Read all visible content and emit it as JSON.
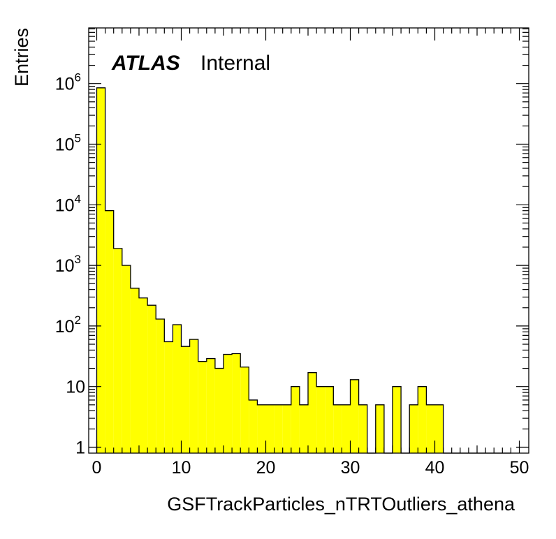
{
  "chart_data": {
    "type": "bar",
    "histogram": true,
    "label_atlas": "ATLAS",
    "label_status": "Internal",
    "xlabel": "GSFTrackParticles_nTRTOutliers_athena",
    "ylabel": "Entries",
    "xlim": [
      0,
      50
    ],
    "ylim": [
      0.8,
      9000000
    ],
    "yscale": "log",
    "bin_width": 1,
    "fill_color": "#ffff00",
    "line_color": "#000000",
    "x_tick_labels": [
      {
        "value": 0,
        "label": "0"
      },
      {
        "value": 10,
        "label": "10"
      },
      {
        "value": 20,
        "label": "20"
      },
      {
        "value": 30,
        "label": "30"
      },
      {
        "value": 40,
        "label": "40"
      },
      {
        "value": 50,
        "label": "50"
      }
    ],
    "y_tick_labels": [
      {
        "value": 1,
        "base": "1",
        "exp": ""
      },
      {
        "value": 10,
        "base": "10",
        "exp": ""
      },
      {
        "value": 100,
        "base": "10",
        "exp": "2"
      },
      {
        "value": 1000,
        "base": "10",
        "exp": "3"
      },
      {
        "value": 10000,
        "base": "10",
        "exp": "4"
      },
      {
        "value": 100000,
        "base": "10",
        "exp": "5"
      },
      {
        "value": 1000000,
        "base": "10",
        "exp": "6"
      }
    ],
    "bin_edges": [
      0,
      1,
      2,
      3,
      4,
      5,
      6,
      7,
      8,
      9,
      10,
      11,
      12,
      13,
      14,
      15,
      16,
      17,
      18,
      19,
      20,
      21,
      22,
      23,
      24,
      25,
      26,
      27,
      28,
      29,
      30,
      31,
      32,
      33,
      34,
      35,
      36,
      37,
      38,
      39,
      40,
      41,
      42,
      43,
      44,
      45,
      46,
      47,
      48,
      49,
      50
    ],
    "values": [
      850000,
      8000,
      1900,
      1000,
      420,
      290,
      220,
      130,
      55,
      105,
      46,
      60,
      26,
      29,
      20,
      34,
      35,
      21,
      6,
      5,
      5,
      5,
      5,
      10,
      5,
      17,
      10,
      10,
      5,
      5,
      13,
      5,
      0,
      5,
      0,
      10,
      0,
      5,
      10,
      5,
      5,
      0,
      0,
      0,
      0,
      0,
      0,
      0,
      0,
      0
    ]
  }
}
